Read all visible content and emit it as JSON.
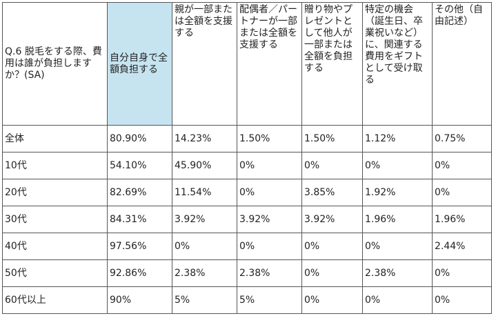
{
  "chart_data": {
    "type": "table",
    "question": "Q.6 脱毛をする際、費用は誰が負担しますか？(SA)",
    "columns": [
      "自分自身で全額負担する",
      "親が一部または全額を支援する",
      "配偶者／パートナーが一部または全額を支援する",
      "贈り物やプレゼントとして他人が一部または全額を負担する",
      "特定の機会（誕生日、卒業祝いなど）に、関連する費用をギフトとして受け取る",
      "その他（自由記述）"
    ],
    "rows": [
      {
        "label": "全体",
        "values": [
          "80.90%",
          "14.23%",
          "1.50%",
          "1.50%",
          "1.12%",
          "0.75%"
        ]
      },
      {
        "label": "10代",
        "values": [
          "54.10%",
          "45.90%",
          "0%",
          "0%",
          "0%",
          "0%"
        ]
      },
      {
        "label": "20代",
        "values": [
          "82.69%",
          "11.54%",
          "0%",
          "3.85%",
          "1.92%",
          "0%"
        ]
      },
      {
        "label": "30代",
        "values": [
          "84.31%",
          "3.92%",
          "3.92%",
          "3.92%",
          "1.96%",
          "1.96%"
        ]
      },
      {
        "label": "40代",
        "values": [
          "97.56%",
          "0%",
          "0%",
          "0%",
          "0%",
          "2.44%"
        ]
      },
      {
        "label": "50代",
        "values": [
          "92.86%",
          "2.38%",
          "2.38%",
          "0%",
          "2.38%",
          "0%"
        ]
      },
      {
        "label": "60代以上",
        "values": [
          "90%",
          "5%",
          "5%",
          "0%",
          "0%",
          "0%"
        ]
      }
    ],
    "highlight_color": "#c5e4f0"
  }
}
